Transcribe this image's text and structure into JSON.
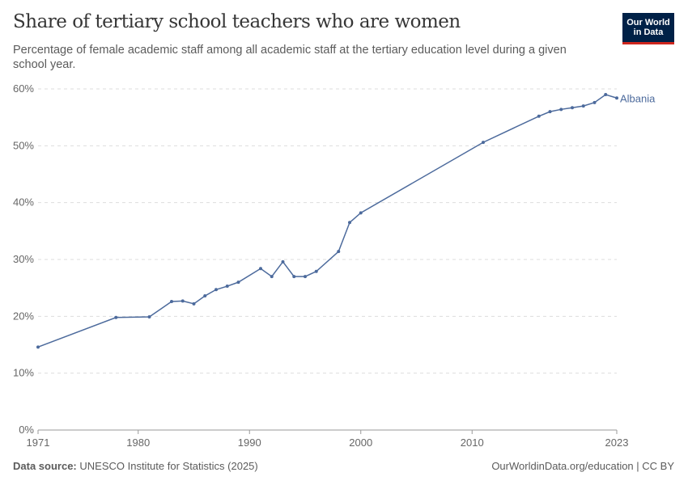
{
  "header": {
    "title": "Share of tertiary school teachers who are women",
    "subtitle": "Percentage of female academic staff among all academic staff at the tertiary education level during a given school year.",
    "logo": "Our World in Data"
  },
  "footer": {
    "source_label": "Data source:",
    "source": "UNESCO Institute for Statistics (2025)",
    "license": "OurWorldinData.org/education | CC BY"
  },
  "colors": {
    "series": "#4c6a9c",
    "grid": "#dddddd",
    "text": "#5b5b5b"
  },
  "chart_data": {
    "type": "line",
    "title": "Share of tertiary school teachers who are women",
    "xlim": [
      1971,
      2023
    ],
    "ylim": [
      0,
      60
    ],
    "x_ticks": [
      "1971",
      "1980",
      "1990",
      "2000",
      "2010",
      "2023"
    ],
    "y_ticks": [
      "0%",
      "10%",
      "20%",
      "30%",
      "40%",
      "50%",
      "60%"
    ],
    "grid": "horizontal dashed",
    "legend": "inline-right",
    "series": [
      {
        "name": "Albania",
        "x": [
          1971,
          1978,
          1981,
          1983,
          1984,
          1985,
          1986,
          1987,
          1988,
          1989,
          1991,
          1992,
          1993,
          1994,
          1995,
          1996,
          1998,
          1999,
          2000,
          2011,
          2016,
          2017,
          2018,
          2019,
          2020,
          2021,
          2022,
          2023
        ],
        "y": [
          14.6,
          19.8,
          19.9,
          22.6,
          22.7,
          22.2,
          23.6,
          24.7,
          25.3,
          26.0,
          28.4,
          27.0,
          29.6,
          27.0,
          27.0,
          27.9,
          31.4,
          36.5,
          38.2,
          50.6,
          55.2,
          56.0,
          56.4,
          56.7,
          57.0,
          57.6,
          59.0,
          58.4
        ]
      }
    ]
  }
}
